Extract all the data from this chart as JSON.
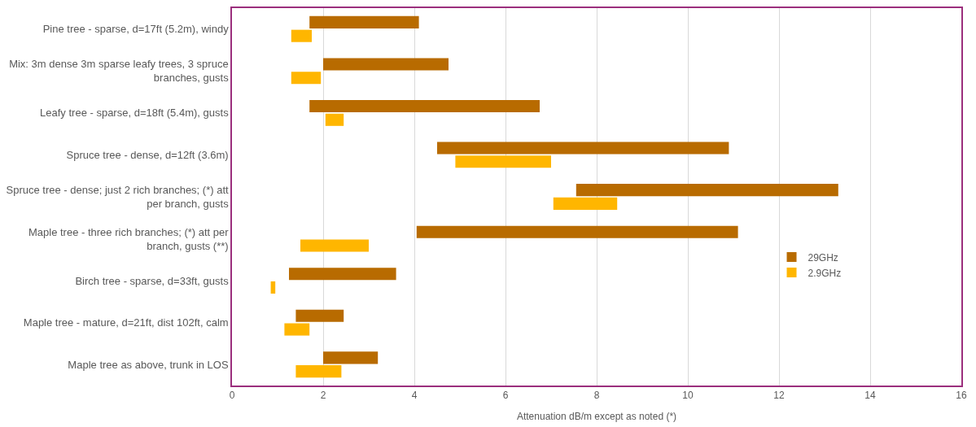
{
  "chart_data": {
    "type": "bar",
    "orientation": "horizontal",
    "xlabel": "Attenuation dB/m except as noted (*)",
    "categories": [
      "Pine tree - sparse, d=17ft (5.2m), windy",
      "Mix: 3m dense 3m sparse leafy trees, 3 spruce branches, gusts",
      "Leafy tree - sparse, d=18ft (5.4m), gusts",
      "Spruce tree - dense, d=12ft (3.6m)",
      "Spruce tree - dense; just 2 rich branches; (*) att per branch, gusts",
      "Maple tree - three rich branches; (*) att per branch, gusts (**)",
      "Birch tree - sparse, d=33ft, gusts",
      "Maple tree - mature, d=21ft, dist 102ft, calm",
      "Maple tree as above, trunk in LOS"
    ],
    "series": [
      {
        "name": "29GHz",
        "color": "#b86b00",
        "base": [
          1.7,
          2.0,
          1.7,
          4.5,
          7.55,
          4.05,
          1.25,
          1.4,
          2.0
        ],
        "values": [
          2.4,
          2.75,
          5.05,
          6.4,
          5.75,
          7.05,
          2.35,
          1.05,
          1.2
        ]
      },
      {
        "name": "2.9GHz",
        "color": "#ffb600",
        "base": [
          1.3,
          1.3,
          2.05,
          4.9,
          7.05,
          1.5,
          0.85,
          1.15,
          1.4
        ],
        "values": [
          0.45,
          0.65,
          0.4,
          2.1,
          1.4,
          1.5,
          0.1,
          0.55,
          1.0
        ]
      }
    ],
    "xlim": [
      0,
      16
    ],
    "xticks": [
      0,
      2,
      4,
      6,
      8,
      10,
      12,
      14,
      16
    ],
    "grid": "x",
    "legend": "right"
  }
}
